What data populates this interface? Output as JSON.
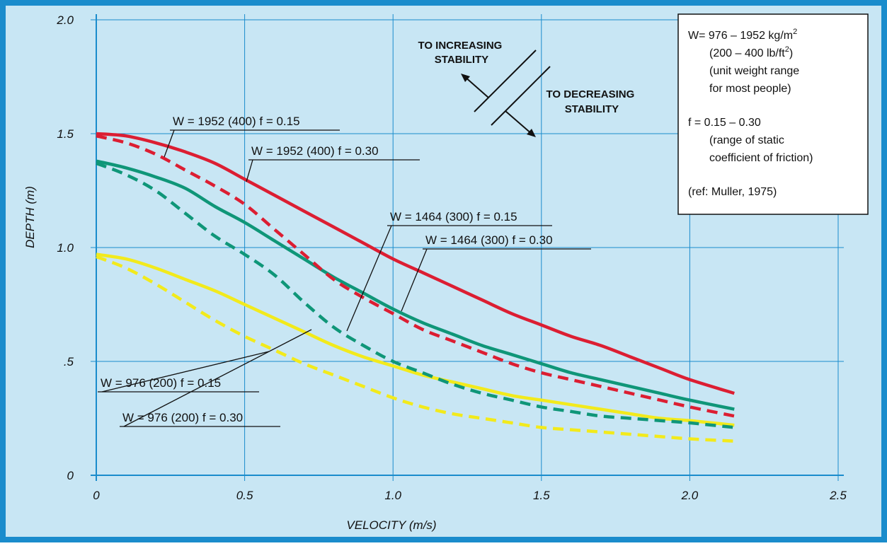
{
  "colors": {
    "frame": "#1a8ccc",
    "plot_bg": "#c8e6f4",
    "grid": "#1a8ccc",
    "red": "#dc1e32",
    "green": "#0f9678",
    "yellow": "#f2ea1c",
    "text": "#111111"
  },
  "chart_data": {
    "type": "line",
    "xlabel": "VELOCITY (m/s)",
    "ylabel": "DEPTH (m)",
    "xlim": [
      0,
      2.5
    ],
    "ylim": [
      0,
      2.0
    ],
    "x_ticks": [
      0,
      0.5,
      1.0,
      1.5,
      2.0,
      2.5
    ],
    "x_tick_labels": [
      "0",
      "0.5",
      "1.0",
      "1.5",
      "2.0",
      "2.5"
    ],
    "y_ticks": [
      0,
      0.5,
      1.0,
      1.5,
      2.0
    ],
    "y_tick_labels": [
      "0",
      ".5",
      "1.0",
      "1.5",
      "2.0"
    ],
    "grid": true,
    "series": [
      {
        "name": "W = 1952 (400) f = 0.15",
        "color": "red",
        "dashed": false,
        "x": [
          0,
          0.1,
          0.2,
          0.3,
          0.4,
          0.5,
          0.6,
          0.7,
          0.8,
          0.9,
          1.0,
          1.1,
          1.2,
          1.3,
          1.4,
          1.5,
          1.6,
          1.7,
          1.8,
          1.9,
          2.0,
          2.15
        ],
        "y": [
          1.5,
          1.49,
          1.46,
          1.42,
          1.37,
          1.3,
          1.23,
          1.16,
          1.09,
          1.02,
          0.95,
          0.89,
          0.83,
          0.77,
          0.71,
          0.66,
          0.61,
          0.57,
          0.52,
          0.47,
          0.42,
          0.36
        ]
      },
      {
        "name": "W = 1952 (400) f = 0.30",
        "color": "red",
        "dashed": true,
        "x": [
          0,
          0.1,
          0.2,
          0.3,
          0.4,
          0.5,
          0.6,
          0.7,
          0.8,
          0.9,
          1.0,
          1.1,
          1.2,
          1.3,
          1.4,
          1.5,
          1.6,
          1.7,
          1.8,
          1.9,
          2.0,
          2.15
        ],
        "y": [
          1.49,
          1.46,
          1.41,
          1.34,
          1.27,
          1.19,
          1.08,
          0.97,
          0.86,
          0.78,
          0.71,
          0.64,
          0.59,
          0.54,
          0.49,
          0.45,
          0.42,
          0.39,
          0.36,
          0.33,
          0.3,
          0.26
        ]
      },
      {
        "name": "W = 1464 (300) f = 0.15",
        "color": "green",
        "dashed": false,
        "x": [
          0,
          0.1,
          0.2,
          0.3,
          0.4,
          0.5,
          0.6,
          0.7,
          0.8,
          0.9,
          1.0,
          1.1,
          1.2,
          1.3,
          1.4,
          1.5,
          1.6,
          1.7,
          1.8,
          1.9,
          2.0,
          2.15
        ],
        "y": [
          1.38,
          1.35,
          1.31,
          1.26,
          1.18,
          1.11,
          1.03,
          0.95,
          0.87,
          0.8,
          0.73,
          0.67,
          0.62,
          0.57,
          0.53,
          0.49,
          0.45,
          0.42,
          0.39,
          0.36,
          0.33,
          0.29
        ]
      },
      {
        "name": "W = 1464 (300) f = 0.30",
        "color": "green",
        "dashed": true,
        "x": [
          0,
          0.1,
          0.2,
          0.3,
          0.4,
          0.5,
          0.6,
          0.7,
          0.8,
          0.9,
          1.0,
          1.1,
          1.2,
          1.3,
          1.4,
          1.5,
          1.6,
          1.7,
          1.8,
          1.9,
          2.0,
          2.15
        ],
        "y": [
          1.37,
          1.32,
          1.25,
          1.15,
          1.05,
          0.97,
          0.88,
          0.76,
          0.65,
          0.57,
          0.5,
          0.45,
          0.4,
          0.36,
          0.33,
          0.3,
          0.28,
          0.26,
          0.25,
          0.24,
          0.23,
          0.21
        ]
      },
      {
        "name": "W = 976 (200) f = 0.15",
        "color": "yellow",
        "dashed": false,
        "x": [
          0,
          0.1,
          0.2,
          0.3,
          0.4,
          0.5,
          0.6,
          0.7,
          0.8,
          0.9,
          1.0,
          1.1,
          1.2,
          1.3,
          1.4,
          1.5,
          1.6,
          1.7,
          1.8,
          1.9,
          2.0,
          2.15
        ],
        "y": [
          0.97,
          0.95,
          0.91,
          0.86,
          0.81,
          0.75,
          0.69,
          0.63,
          0.57,
          0.52,
          0.48,
          0.44,
          0.41,
          0.38,
          0.35,
          0.33,
          0.31,
          0.29,
          0.27,
          0.25,
          0.24,
          0.22
        ]
      },
      {
        "name": "W = 976 (200) f = 0.30",
        "color": "yellow",
        "dashed": true,
        "x": [
          0,
          0.1,
          0.2,
          0.3,
          0.4,
          0.5,
          0.6,
          0.7,
          0.8,
          0.9,
          1.0,
          1.1,
          1.2,
          1.3,
          1.4,
          1.5,
          1.6,
          1.7,
          1.8,
          1.9,
          2.0,
          2.15
        ],
        "y": [
          0.96,
          0.91,
          0.84,
          0.76,
          0.68,
          0.61,
          0.55,
          0.49,
          0.44,
          0.39,
          0.34,
          0.3,
          0.27,
          0.25,
          0.23,
          0.21,
          0.2,
          0.19,
          0.18,
          0.17,
          0.16,
          0.15
        ]
      }
    ],
    "annotations": {
      "increasing": [
        "TO INCREASING",
        "STABILITY"
      ],
      "decreasing": [
        "TO DECREASING",
        "STABILITY"
      ]
    },
    "info_box": {
      "w_prefix": "W= 976 – 1952 kg/m",
      "w_sup": "2",
      "lb_prefix": "(200 – 400 lb/ft",
      "lb_sup": "2",
      "lb_suffix": ")",
      "unit_line1": "(unit weight range",
      "unit_line2": "for most people)",
      "f_line": "f  =  0.15 – 0.30",
      "f_note1": "(range of static",
      "f_note2": "coefficient of friction)",
      "ref": "(ref: Muller, 1975)"
    }
  }
}
